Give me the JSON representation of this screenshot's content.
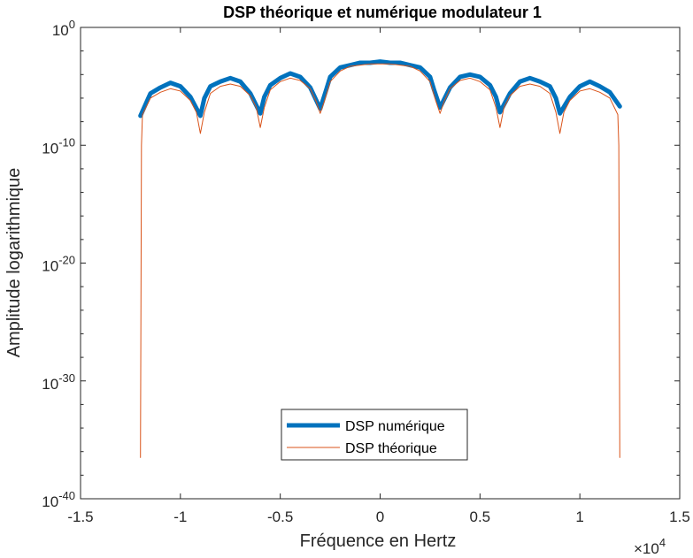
{
  "chart_data": {
    "type": "line",
    "title": "DSP théorique et numérique modulateur 1",
    "xlabel": "Fréquence en Hertz",
    "ylabel": "Amplitude logarithmique",
    "xlim": [
      -15000,
      15000
    ],
    "ylim_exponent": [
      -40,
      0
    ],
    "yscale": "log",
    "x_multiplier_label": {
      "base": "×10",
      "exponent": "4"
    },
    "x_ticks": [
      {
        "value": -15000,
        "label": "-1.5"
      },
      {
        "value": -10000,
        "label": "-1"
      },
      {
        "value": -5000,
        "label": "-0.5"
      },
      {
        "value": 0,
        "label": "0"
      },
      {
        "value": 5000,
        "label": "0.5"
      },
      {
        "value": 10000,
        "label": "1"
      },
      {
        "value": 15000,
        "label": "1.5"
      }
    ],
    "y_ticks": [
      {
        "exponent": 0,
        "base": "10",
        "sup": "0"
      },
      {
        "exponent": -10,
        "base": "10",
        "sup": "-10"
      },
      {
        "exponent": -20,
        "base": "10",
        "sup": "-20"
      },
      {
        "exponent": -30,
        "base": "10",
        "sup": "-30"
      },
      {
        "exponent": -40,
        "base": "10",
        "sup": "-40"
      }
    ],
    "legend": {
      "placement": "lower-center"
    },
    "series": [
      {
        "name": "DSP numérique",
        "color": "#0072BD",
        "style": "thick",
        "x": [
          -12000,
          -11500,
          -11000,
          -10500,
          -10000,
          -9500,
          -9000,
          -8800,
          -8500,
          -8000,
          -7500,
          -7000,
          -6500,
          -6000,
          -5800,
          -5500,
          -5000,
          -4500,
          -4000,
          -3500,
          -3000,
          -2700,
          -2500,
          -2000,
          -1500,
          -1000,
          -500,
          0,
          500,
          1000,
          1500,
          2000,
          2500,
          2700,
          3000,
          3500,
          4000,
          4500,
          5000,
          5500,
          5800,
          6000,
          6500,
          7000,
          7500,
          8000,
          8500,
          8800,
          9000,
          9500,
          10000,
          10500,
          11000,
          11500,
          12000
        ],
        "y_exp": [
          -7.5,
          -5.6,
          -5.1,
          -4.7,
          -5.0,
          -5.9,
          -7.5,
          -6.0,
          -5.0,
          -4.6,
          -4.3,
          -4.6,
          -5.6,
          -7.3,
          -5.9,
          -4.9,
          -4.3,
          -3.9,
          -4.2,
          -5.1,
          -6.9,
          -5.3,
          -4.2,
          -3.4,
          -3.2,
          -3.0,
          -3.0,
          -2.9,
          -3.0,
          -3.0,
          -3.2,
          -3.4,
          -4.2,
          -5.3,
          -6.8,
          -5.1,
          -4.2,
          -4.0,
          -4.2,
          -4.9,
          -5.9,
          -7.2,
          -5.6,
          -4.6,
          -4.3,
          -4.6,
          -5.0,
          -6.0,
          -7.3,
          -5.9,
          -5.0,
          -4.6,
          -5.0,
          -5.5,
          -6.7
        ]
      },
      {
        "name": "DSP théorique",
        "color": "#D95319",
        "style": "thin",
        "x": [
          -12000,
          -11950,
          -11900,
          -11500,
          -11000,
          -10500,
          -10000,
          -9500,
          -9200,
          -9000,
          -8800,
          -8500,
          -8000,
          -7500,
          -7000,
          -6500,
          -6200,
          -6000,
          -5800,
          -5500,
          -5000,
          -4500,
          -4000,
          -3500,
          -3200,
          -3000,
          -2800,
          -2500,
          -2000,
          -1500,
          -1000,
          -500,
          0,
          500,
          1000,
          1500,
          2000,
          2500,
          2800,
          3000,
          3200,
          3500,
          4000,
          4500,
          5000,
          5500,
          5800,
          6000,
          6200,
          6500,
          7000,
          7500,
          8000,
          8500,
          8800,
          9000,
          9200,
          9500,
          10000,
          10500,
          11000,
          11500,
          11900,
          11950,
          12000
        ],
        "y_exp": [
          -36.5,
          -10,
          -7.4,
          -6.0,
          -5.5,
          -5.2,
          -5.4,
          -6.2,
          -7.2,
          -9.0,
          -7.2,
          -5.6,
          -5.0,
          -4.8,
          -5.0,
          -5.8,
          -6.8,
          -8.5,
          -6.8,
          -5.3,
          -4.6,
          -4.3,
          -4.5,
          -5.2,
          -6.3,
          -7.3,
          -6.3,
          -4.6,
          -3.7,
          -3.3,
          -3.2,
          -3.1,
          -3.1,
          -3.1,
          -3.2,
          -3.3,
          -3.7,
          -4.6,
          -6.3,
          -7.3,
          -6.3,
          -5.2,
          -4.5,
          -4.3,
          -4.6,
          -5.3,
          -6.8,
          -8.5,
          -6.8,
          -5.8,
          -5.0,
          -4.8,
          -5.0,
          -5.6,
          -7.2,
          -9.0,
          -7.2,
          -6.2,
          -5.4,
          -5.2,
          -5.5,
          -6.0,
          -7.4,
          -10,
          -36.5
        ]
      }
    ]
  }
}
